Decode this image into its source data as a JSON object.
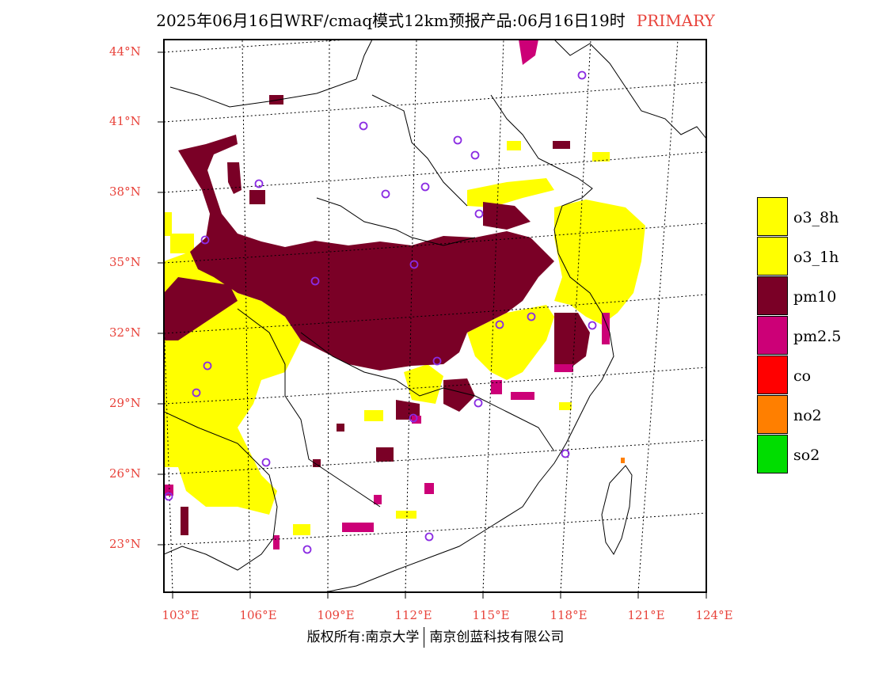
{
  "title": {
    "main": "2025年06月16日WRF/cmaq模式12km预报产品:06月16日19时",
    "tag": "PRIMARY"
  },
  "lat_labels": [
    "44°N",
    "41°N",
    "38°N",
    "35°N",
    "32°N",
    "29°N",
    "26°N",
    "23°N"
  ],
  "lon_labels": [
    "103°E",
    "106°E",
    "109°E",
    "112°E",
    "115°E",
    "118°E",
    "121°E",
    "124°E"
  ],
  "legend": [
    {
      "label": "o3_8h",
      "color": "#ffff00"
    },
    {
      "label": "o3_1h",
      "color": "#ffff00"
    },
    {
      "label": "pm10",
      "color": "#7a0026"
    },
    {
      "label": "pm2.5",
      "color": "#cc0077"
    },
    {
      "label": "co",
      "color": "#ff0000"
    },
    {
      "label": "no2",
      "color": "#ff7f00"
    },
    {
      "label": "so2",
      "color": "#00dd00"
    }
  ],
  "copyright": {
    "left": "版权所有:南京大学",
    "right": "南京创蓝科技有限公司"
  },
  "colors": {
    "o3": "#ffff00",
    "pm10": "#7a0026",
    "pm25": "#cc0077",
    "no2": "#ff7f00",
    "accent": "#e8433b",
    "station": "#8a2be2"
  }
}
